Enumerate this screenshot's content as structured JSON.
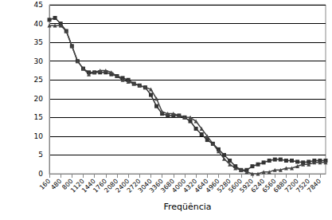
{
  "chart_data": {
    "type": "line",
    "x_label": "Freqüência",
    "x": [
      160,
      320,
      480,
      640,
      800,
      960,
      1120,
      1280,
      1440,
      1600,
      1760,
      1920,
      2080,
      2240,
      2400,
      2560,
      2720,
      2880,
      3040,
      3200,
      3360,
      3520,
      3680,
      3840,
      4000,
      4160,
      4320,
      4480,
      4640,
      4800,
      4960,
      5120,
      5280,
      5440,
      5600,
      5760,
      5920,
      6080,
      6240,
      6400,
      6560,
      6720,
      6880,
      7040,
      7200,
      7360,
      7520,
      7680,
      7840,
      8000
    ],
    "series": [
      {
        "color": "#333333",
        "marker": "square",
        "values": [
          41,
          41.5,
          40,
          38,
          34,
          30,
          28,
          27,
          27,
          27,
          27,
          26.5,
          26,
          25.5,
          25,
          24,
          23.5,
          23,
          21,
          18,
          16,
          15.5,
          15.5,
          15.5,
          15,
          14,
          12,
          10.5,
          9,
          8,
          6.5,
          5,
          3.5,
          2,
          1,
          1,
          2,
          2.5,
          3,
          3.5,
          3.8,
          3.8,
          3.5,
          3.5,
          3.2,
          3,
          3.2,
          3.5,
          3.5,
          3.5
        ]
      },
      {
        "color": "#444444",
        "marker": "triangle",
        "values": [
          39.5,
          39.5,
          39.5,
          38,
          34,
          30,
          28,
          26.5,
          27,
          27.5,
          27.5,
          27,
          26,
          25,
          24.5,
          24,
          23.5,
          23,
          22.5,
          20,
          16.5,
          16,
          16,
          15.5,
          15,
          15,
          14,
          12,
          10,
          8,
          6,
          4,
          2.5,
          1.5,
          1,
          0.5,
          0,
          0,
          0.5,
          0.5,
          1,
          1,
          1.5,
          1.5,
          2,
          2.5,
          2.5,
          3,
          3,
          3
        ]
      }
    ],
    "xlim": [
      160,
      8000
    ],
    "xticks": [
      160,
      480,
      800,
      1120,
      1440,
      1760,
      2080,
      2400,
      2720,
      3040,
      3360,
      3680,
      4000,
      4320,
      4640,
      4960,
      5280,
      5600,
      5920,
      6240,
      6560,
      6880,
      7200,
      7520,
      7840
    ],
    "ylim": [
      0,
      45
    ],
    "yticks": [
      0,
      5,
      10,
      15,
      20,
      25,
      30,
      35,
      40,
      45
    ],
    "grid": true
  }
}
